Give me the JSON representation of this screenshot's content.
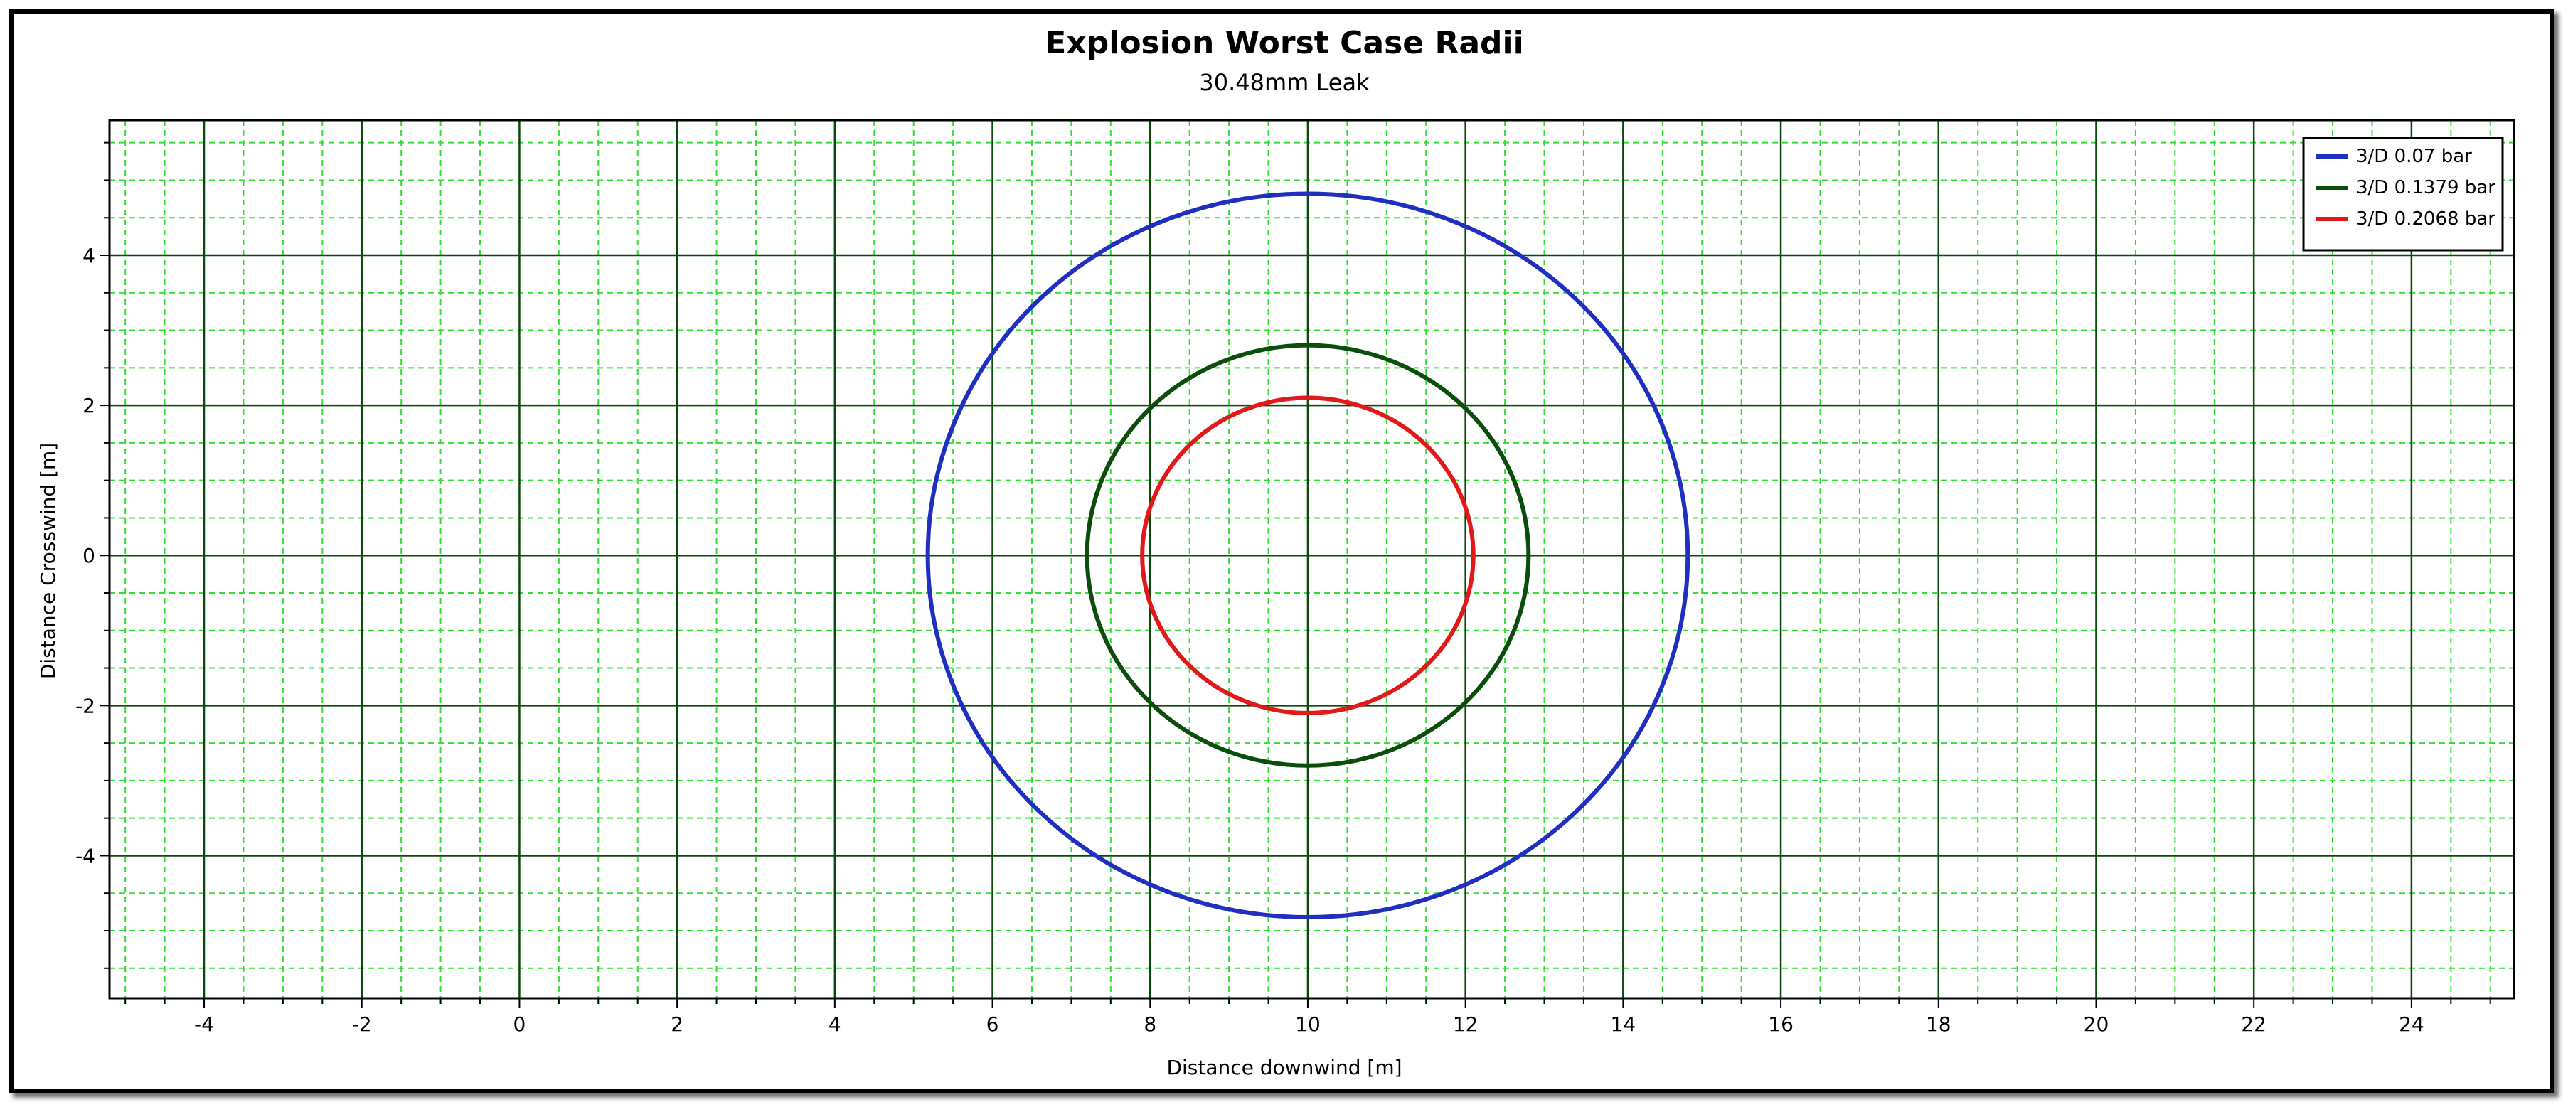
{
  "chart_data": {
    "type": "scatter",
    "title": "Explosion Worst Case Radii",
    "subtitle": "30.48mm Leak",
    "xlabel": "Distance downwind [m]",
    "ylabel": "Distance Crosswind [m]",
    "xlim": [
      -5.2,
      25.3
    ],
    "ylim": [
      -5.9,
      5.8
    ],
    "x_ticks": [
      -4,
      -2,
      0,
      2,
      4,
      6,
      8,
      10,
      12,
      14,
      16,
      18,
      20,
      22,
      24
    ],
    "y_ticks": [
      -4,
      -2,
      0,
      2,
      4
    ],
    "grid": true,
    "legend_position": "top-right",
    "series": [
      {
        "name": "3/D 0.07 bar",
        "color": "#1f2fbf",
        "shape": "circle",
        "center": [
          10,
          0
        ],
        "radius": 4.82
      },
      {
        "name": "3/D 0.1379 bar",
        "color": "#0b4d0b",
        "shape": "circle",
        "center": [
          10,
          0
        ],
        "radius": 2.8
      },
      {
        "name": "3/D 0.2068 bar",
        "color": "#e01a1a",
        "shape": "circle",
        "center": [
          10,
          0
        ],
        "radius": 2.1
      }
    ]
  },
  "colors": {
    "major_grid": "#0a4a0a",
    "minor_grid": "#33dd33"
  }
}
